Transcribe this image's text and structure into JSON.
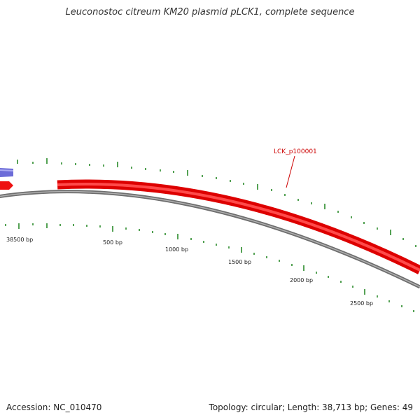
{
  "title": "Leuconostoc citreum KM20 plasmid pLCK1, complete sequence",
  "accession_text": "Accession: NC_010470",
  "summary_text": "Topology: circular; Length: 38,713 bp; Genes: 49",
  "ruler_labels": [
    "38500 bp",
    "500 bp",
    "1000 bp",
    "1500 bp",
    "2000 bp",
    "2500 bp"
  ],
  "gene_label": "LCK_p100001",
  "colors": {
    "backbone": "#808080",
    "forward_gene": "#ee0000",
    "reverse_gene": "#7070dd",
    "ticks": "#2a8a2a",
    "label": "#cc0000"
  }
}
